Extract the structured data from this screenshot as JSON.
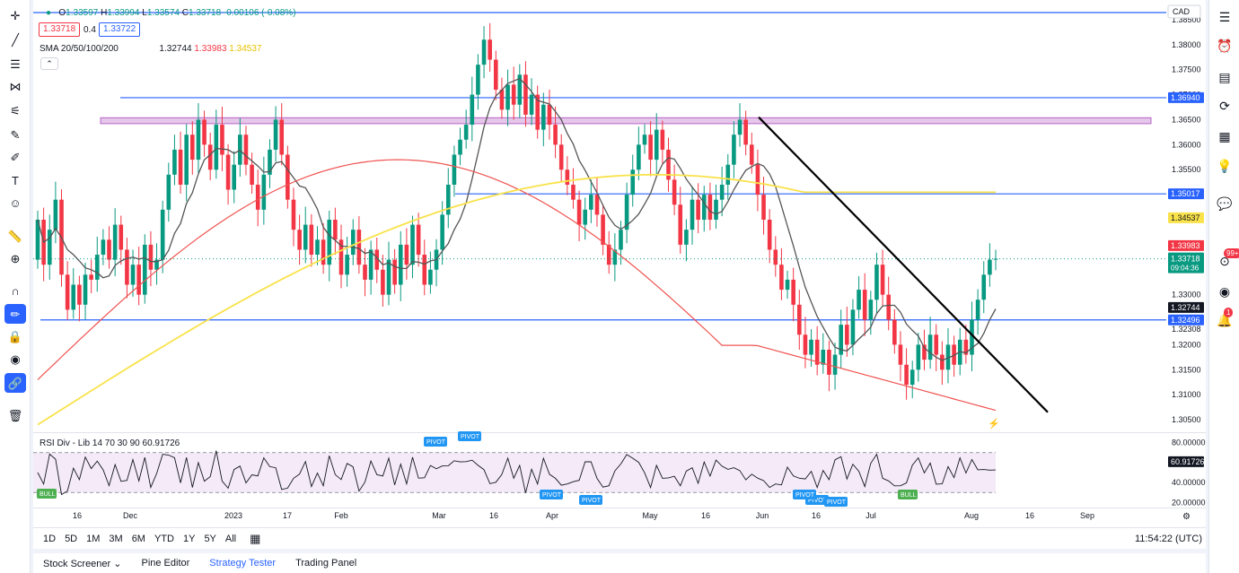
{
  "header": {
    "ohlc": {
      "open": "1.33597",
      "high": "1.33994",
      "low": "1.33574",
      "close": "1.33718",
      "change": "-0.00106 (-0.08%)"
    },
    "sell_price": "1.33718",
    "spread": "0.4",
    "buy_price": "1.33722",
    "currency": "CAD"
  },
  "sma_legend": {
    "title": "SMA 20/50/100/200",
    "v1": "1.32744",
    "v2": "1.33983",
    "v3": "1.34537"
  },
  "rsi_legend": {
    "title": "RSI Div - Lib 14 70 30 90",
    "value": "60.91726"
  },
  "ranges": [
    "1D",
    "5D",
    "1M",
    "3M",
    "6M",
    "YTD",
    "1Y",
    "5Y",
    "All"
  ],
  "clock": "11:54:22 (UTC)",
  "footer_tabs": [
    "Stock Screener",
    "Pine Editor",
    "Strategy Tester",
    "Trading Panel"
  ],
  "toolbar_icons": [
    "crosshair-icon",
    "trend-line-icon",
    "fib-icon",
    "pattern-icon",
    "projection-icon",
    "brush-icon",
    "pen-icon",
    "text-icon",
    "emoji-icon",
    "ruler-icon",
    "zoom-icon",
    "magnet-icon",
    "lock-drawing-icon",
    "lock-icon",
    "eye-icon",
    "link-icon",
    "trash-icon"
  ],
  "right_icons": [
    "watchlist-icon",
    "alert-clock-icon",
    "news-icon",
    "refresh-icon",
    "calendar-icon",
    "idea-icon",
    "chat-icon",
    "notification-icon",
    "stream-icon",
    "bell-icon"
  ],
  "right_badges": {
    "notifications": "99+",
    "bell": "1"
  },
  "colors": {
    "up": "#089981",
    "down": "#f23645",
    "sma20": "#555555",
    "sma50": "#ef5350",
    "sma100": "#f9e24a",
    "level": "#2962ff",
    "zone": "#e1bee7"
  },
  "chart_data": {
    "type": "candlestick",
    "pair": "USD/CAD",
    "ylim": [
      1.3025,
      1.3875
    ],
    "yticks": [
      "1.38500",
      "1.38000",
      "1.37500",
      "1.37000",
      "1.36500",
      "1.36000",
      "1.35500",
      "1.35000",
      "1.34500",
      "1.34000",
      "1.33500",
      "1.33000",
      "1.32500",
      "1.32000",
      "1.31500",
      "1.31000",
      "1.30500"
    ],
    "time_ticks": [
      "16",
      "Dec",
      "2023",
      "17",
      "Feb",
      "Mar",
      "16",
      "Apr",
      "May",
      "16",
      "Jun",
      "16",
      "Jul",
      "Aug",
      "16",
      "Sep"
    ],
    "candles_close": [
      1.345,
      1.336,
      1.343,
      1.349,
      1.334,
      1.327,
      1.332,
      1.328,
      1.334,
      1.333,
      1.338,
      1.341,
      1.337,
      1.344,
      1.339,
      1.332,
      1.336,
      1.33,
      1.34,
      1.335,
      1.337,
      1.347,
      1.354,
      1.359,
      1.352,
      1.362,
      1.357,
      1.365,
      1.36,
      1.355,
      1.364,
      1.358,
      1.351,
      1.356,
      1.362,
      1.356,
      1.352,
      1.347,
      1.354,
      1.359,
      1.365,
      1.358,
      1.349,
      1.343,
      1.339,
      1.344,
      1.338,
      1.341,
      1.336,
      1.345,
      1.341,
      1.334,
      1.338,
      1.343,
      1.336,
      1.333,
      1.339,
      1.335,
      1.33,
      1.337,
      1.332,
      1.34,
      1.336,
      1.344,
      1.338,
      1.332,
      1.335,
      1.339,
      1.346,
      1.352,
      1.358,
      1.361,
      1.364,
      1.37,
      1.376,
      1.381,
      1.377,
      1.371,
      1.367,
      1.372,
      1.368,
      1.374,
      1.366,
      1.37,
      1.363,
      1.368,
      1.364,
      1.36,
      1.355,
      1.352,
      1.349,
      1.344,
      1.347,
      1.35,
      1.346,
      1.34,
      1.336,
      1.339,
      1.343,
      1.35,
      1.355,
      1.36,
      1.362,
      1.357,
      1.363,
      1.359,
      1.353,
      1.348,
      1.34,
      1.343,
      1.349,
      1.345,
      1.35,
      1.345,
      1.349,
      1.352,
      1.356,
      1.362,
      1.365,
      1.36,
      1.356,
      1.35,
      1.345,
      1.339,
      1.336,
      1.331,
      1.333,
      1.328,
      1.322,
      1.318,
      1.321,
      1.316,
      1.319,
      1.314,
      1.318,
      1.324,
      1.32,
      1.327,
      1.331,
      1.325,
      1.329,
      1.336,
      1.33,
      1.325,
      1.32,
      1.316,
      1.312,
      1.315,
      1.32,
      1.317,
      1.322,
      1.318,
      1.315,
      1.32,
      1.316,
      1.321,
      1.318,
      1.325,
      1.329,
      1.334,
      1.337,
      1.3372
    ],
    "levels": [
      1.3694,
      1.35017,
      1.32496
    ],
    "zone": [
      1.3642,
      1.3654
    ],
    "price_labels": {
      "current": "1.33718",
      "countdown": "09:04:36",
      "sma50": "1.33983",
      "sma100": "1.34537",
      "sma20": "1.32744",
      "level1": "1.36940",
      "level2": "1.35017",
      "level3": "1.32496",
      "plain": "1.32308"
    },
    "rsi": {
      "ylim": [
        15,
        85
      ],
      "yticks": [
        "80.00000",
        "40.00000",
        "20.00000"
      ],
      "value_label": "60.91726",
      "overbought": 70,
      "oversold": 30,
      "value": 60.91726,
      "signals": [
        {
          "text": "PIVOT",
          "type": "top"
        },
        {
          "text": "PIVOT",
          "type": "top"
        },
        {
          "text": "PIVOT",
          "type": "bottom"
        },
        {
          "text": "PIVOT",
          "type": "bottom"
        },
        {
          "text": "PIVOT",
          "type": "bottom"
        },
        {
          "text": "PIVOT",
          "type": "bottom"
        },
        {
          "text": "PIVOT",
          "type": "bottom"
        },
        {
          "text": "BULL",
          "type": "bull"
        },
        {
          "text": "BULL",
          "type": "bull"
        }
      ]
    }
  }
}
